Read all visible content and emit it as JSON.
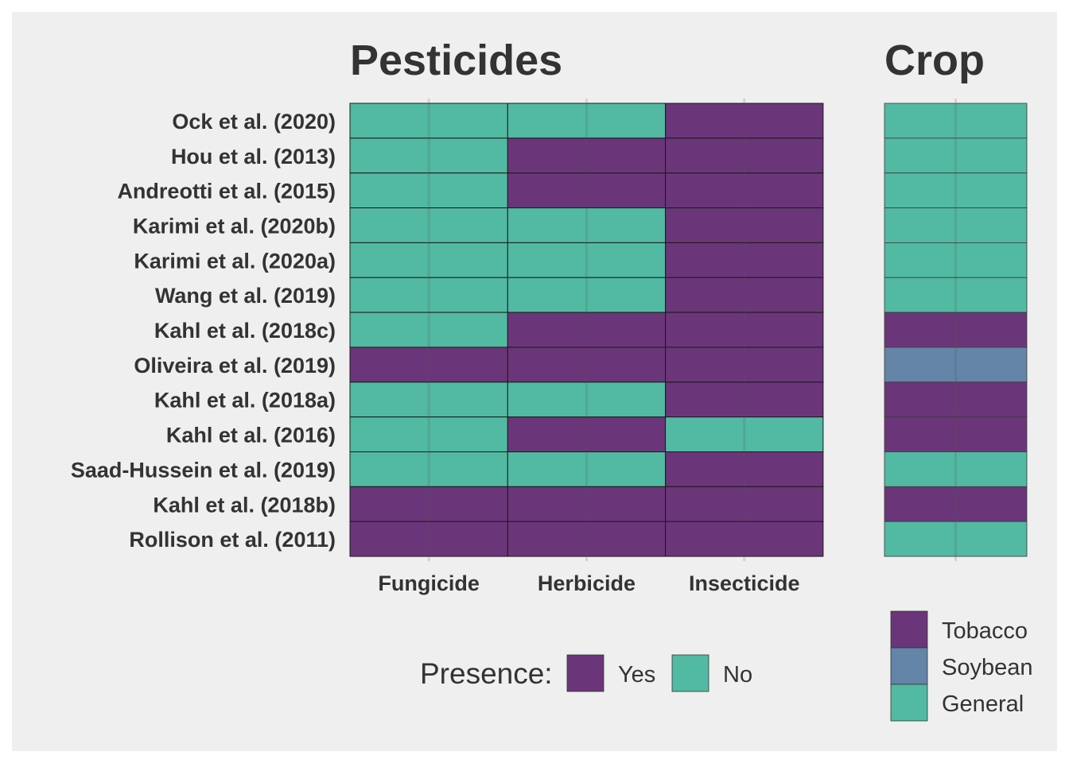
{
  "chart_data": [
    {
      "type": "heatmap",
      "title": "Pesticides",
      "columns": [
        "Fungicide",
        "Herbicide",
        "Insecticide"
      ],
      "rows": [
        "Ock et al. (2020)",
        "Hou et al. (2013)",
        "Andreotti et al. (2015)",
        "Karimi et al. (2020b)",
        "Karimi et al. (2020a)",
        "Wang et al. (2019)",
        "Kahl et al. (2018c)",
        "Oliveira et al. (2019)",
        "Kahl et al. (2018a)",
        "Kahl et al. (2016)",
        "Saad-Hussein et al. (2019)",
        "Kahl et al. (2018b)",
        "Rollison et al. (2011)"
      ],
      "values": [
        [
          "No",
          "No",
          "Yes"
        ],
        [
          "No",
          "Yes",
          "Yes"
        ],
        [
          "No",
          "Yes",
          "Yes"
        ],
        [
          "No",
          "No",
          "Yes"
        ],
        [
          "No",
          "No",
          "Yes"
        ],
        [
          "No",
          "No",
          "Yes"
        ],
        [
          "No",
          "Yes",
          "Yes"
        ],
        [
          "Yes",
          "Yes",
          "Yes"
        ],
        [
          "No",
          "No",
          "Yes"
        ],
        [
          "No",
          "Yes",
          "No"
        ],
        [
          "No",
          "No",
          "Yes"
        ],
        [
          "Yes",
          "Yes",
          "Yes"
        ],
        [
          "Yes",
          "Yes",
          "Yes"
        ]
      ],
      "legend": {
        "title": "Presence:",
        "items": [
          {
            "label": "Yes",
            "color": "#6b3679"
          },
          {
            "label": "No",
            "color": "#52b9a2"
          }
        ],
        "position": "bottom"
      }
    },
    {
      "type": "heatmap",
      "title": "Crop",
      "values": [
        "General",
        "General",
        "General",
        "General",
        "General",
        "General",
        "Tobacco",
        "Soybean",
        "Tobacco",
        "Tobacco",
        "General",
        "Tobacco",
        "General"
      ],
      "legend": {
        "items": [
          {
            "label": "Tobacco",
            "color": "#6b3679"
          },
          {
            "label": "Soybean",
            "color": "#6484a8"
          },
          {
            "label": "General",
            "color": "#52b9a2"
          }
        ],
        "position": "bottom-right"
      }
    }
  ]
}
